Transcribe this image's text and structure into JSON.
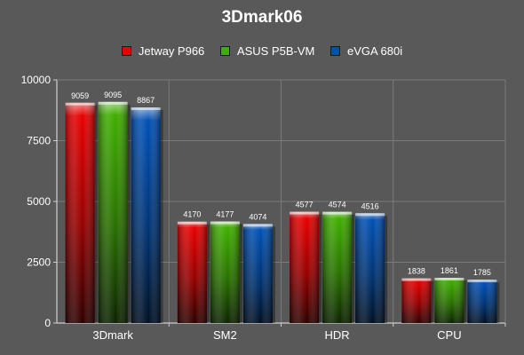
{
  "chart_data": {
    "type": "bar",
    "title": "3Dmark06",
    "categories": [
      "3Dmark",
      "SM2",
      "HDR",
      "CPU"
    ],
    "series": [
      {
        "name": "Jetway P966",
        "values": [
          9059,
          4170,
          4577,
          1838
        ],
        "color": "#e60000"
      },
      {
        "name": "ASUS P5B-VM",
        "values": [
          9095,
          4177,
          4574,
          1861
        ],
        "color": "#3fae00"
      },
      {
        "name": "eVGA 680i",
        "values": [
          8867,
          4074,
          4516,
          1785
        ],
        "color": "#0050b4"
      }
    ],
    "ylim": [
      0,
      10000
    ],
    "yticks": [
      0,
      2500,
      5000,
      7500,
      10000
    ],
    "xlabel": "",
    "ylabel": "",
    "grid": true,
    "legend_position": "top"
  }
}
